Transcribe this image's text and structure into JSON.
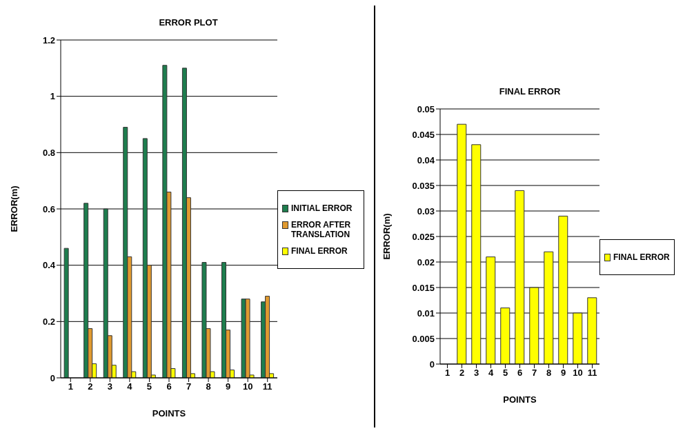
{
  "chart_data": [
    {
      "type": "bar",
      "title": "ERROR PLOT",
      "xlabel": "POINTS",
      "ylabel": "ERROR(m)",
      "categories": [
        "1",
        "2",
        "3",
        "4",
        "5",
        "6",
        "7",
        "8",
        "9",
        "10",
        "11"
      ],
      "series": [
        {
          "name": "INITIAL ERROR",
          "color": "#1e7d4e",
          "values": [
            0.46,
            0.62,
            0.6,
            0.89,
            0.85,
            1.11,
            1.1,
            0.41,
            0.41,
            0.28,
            0.27
          ]
        },
        {
          "name": "ERROR AFTER TRANSLATION",
          "color": "#e09a30",
          "values": [
            null,
            0.175,
            0.15,
            0.43,
            0.4,
            0.66,
            0.64,
            0.175,
            0.17,
            0.28,
            0.29
          ]
        },
        {
          "name": "FINAL ERROR",
          "color": "#ffff00",
          "values": [
            null,
            0.05,
            0.045,
            0.022,
            0.01,
            0.033,
            0.015,
            0.022,
            0.028,
            0.01,
            0.015
          ]
        }
      ],
      "ylim": [
        0,
        1.2
      ],
      "yticks": [
        0,
        0.2,
        0.4,
        0.6,
        0.8,
        1,
        1.2
      ],
      "grid": "y",
      "legend": "right"
    },
    {
      "type": "bar",
      "title": "FINAL ERROR",
      "xlabel": "POINTS",
      "ylabel": "ERROR(m)",
      "categories": [
        "1",
        "2",
        "3",
        "4",
        "5",
        "6",
        "7",
        "8",
        "9",
        "10",
        "11"
      ],
      "series": [
        {
          "name": "FINAL ERROR",
          "color": "#ffff00",
          "values": [
            null,
            0.047,
            0.043,
            0.021,
            0.011,
            0.034,
            0.015,
            0.022,
            0.029,
            0.01,
            0.013
          ]
        }
      ],
      "ylim": [
        0,
        0.05
      ],
      "yticks": [
        0,
        0.005,
        0.01,
        0.015,
        0.02,
        0.025,
        0.03,
        0.035,
        0.04,
        0.045,
        0.05
      ],
      "grid": "y",
      "legend": "right"
    }
  ]
}
